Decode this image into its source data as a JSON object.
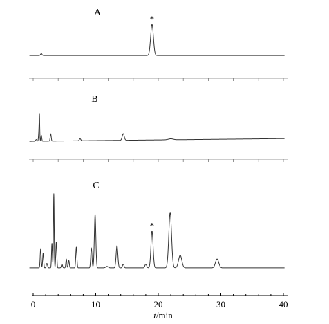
{
  "chart_data": {
    "type": "line",
    "xlabel_italic": "t",
    "xlabel_rest": "/min",
    "xlim": [
      0,
      40
    ],
    "xticks": [
      0,
      10,
      20,
      30,
      40
    ],
    "panels": [
      {
        "label": "A",
        "baseline": 0.02,
        "peaks": [
          {
            "t": 1.3,
            "h": 0.06,
            "w": 0.12
          },
          {
            "t": 19.0,
            "h": 1.0,
            "w": 0.22,
            "marker": "*"
          }
        ]
      },
      {
        "label": "B",
        "baseline_start": 0.02,
        "baseline_end": 0.1,
        "peaks": [
          {
            "t": 0.5,
            "h": 0.05,
            "w": 0.1
          },
          {
            "t": 0.9,
            "h": 0.22,
            "w": 0.06
          },
          {
            "t": 1.0,
            "h": 0.78,
            "w": 0.05
          },
          {
            "t": 1.3,
            "h": 0.18,
            "w": 0.07
          },
          {
            "t": 2.8,
            "h": 0.22,
            "w": 0.08
          },
          {
            "t": 7.5,
            "h": 0.06,
            "w": 0.12
          },
          {
            "t": 14.4,
            "h": 0.2,
            "w": 0.16
          },
          {
            "t": 22.0,
            "h": 0.03,
            "w": 0.4
          }
        ]
      },
      {
        "label": "C",
        "baseline": 0.01,
        "peaks": [
          {
            "t": 1.2,
            "h": 0.26,
            "w": 0.08
          },
          {
            "t": 1.6,
            "h": 0.2,
            "w": 0.08
          },
          {
            "t": 2.2,
            "h": 0.06,
            "w": 0.1
          },
          {
            "t": 3.0,
            "h": 0.33,
            "w": 0.07
          },
          {
            "t": 3.3,
            "h": 1.0,
            "w": 0.06
          },
          {
            "t": 3.7,
            "h": 0.35,
            "w": 0.08
          },
          {
            "t": 4.6,
            "h": 0.05,
            "w": 0.1
          },
          {
            "t": 5.3,
            "h": 0.12,
            "w": 0.08
          },
          {
            "t": 5.7,
            "h": 0.1,
            "w": 0.08
          },
          {
            "t": 6.9,
            "h": 0.28,
            "w": 0.09
          },
          {
            "t": 9.3,
            "h": 0.27,
            "w": 0.1
          },
          {
            "t": 9.9,
            "h": 0.72,
            "w": 0.12
          },
          {
            "t": 11.8,
            "h": 0.02,
            "w": 0.2
          },
          {
            "t": 13.4,
            "h": 0.3,
            "w": 0.14
          },
          {
            "t": 14.4,
            "h": 0.05,
            "w": 0.12
          },
          {
            "t": 18.0,
            "h": 0.05,
            "w": 0.14
          },
          {
            "t": 19.0,
            "h": 0.5,
            "w": 0.17,
            "marker": "*"
          },
          {
            "t": 21.9,
            "h": 0.75,
            "w": 0.22
          },
          {
            "t": 23.5,
            "h": 0.17,
            "w": 0.26
          },
          {
            "t": 29.4,
            "h": 0.12,
            "w": 0.26
          }
        ]
      }
    ]
  }
}
